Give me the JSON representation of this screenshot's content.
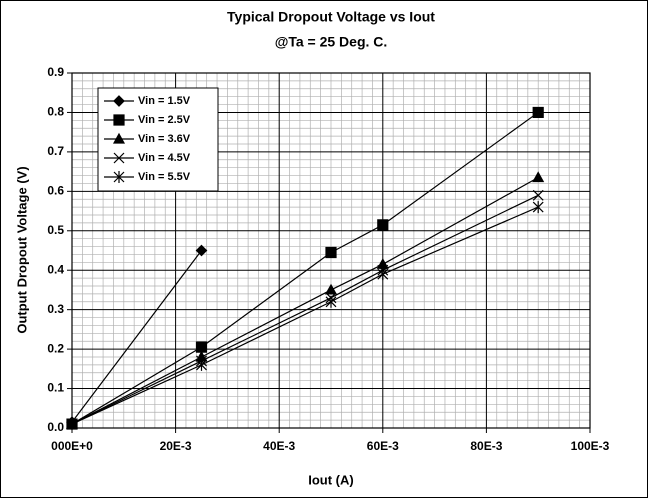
{
  "chart_data": {
    "type": "line",
    "title": "Typical Dropout Voltage vs Iout",
    "subtitle": "@Ta = 25 Deg. C.",
    "xlabel": "Iout (A)",
    "ylabel": "Output Dropout Voltage (V)",
    "xlim": [
      0,
      0.1
    ],
    "xticks": [
      {
        "value": 0,
        "label": "000E+0"
      },
      {
        "value": 0.02,
        "label": "20E-3"
      },
      {
        "value": 0.04,
        "label": "40E-3"
      },
      {
        "value": 0.06,
        "label": "60E-3"
      },
      {
        "value": 0.08,
        "label": "80E-3"
      },
      {
        "value": 0.1,
        "label": "100E-3"
      }
    ],
    "ylim": [
      0,
      0.9
    ],
    "yticks": [
      {
        "value": 0,
        "label": "0.0"
      },
      0.1,
      0.2,
      0.3,
      0.4,
      0.5,
      0.6,
      0.7,
      0.8,
      0.9
    ],
    "grid": true,
    "minor_grid": {
      "x": 10,
      "y": 5
    },
    "legend": "upper left",
    "series": [
      {
        "name": "Vin = 1.5V",
        "color": "#000000",
        "marker": "diamond",
        "x": [
          0,
          0.025
        ],
        "values": [
          0.015,
          0.45
        ]
      },
      {
        "name": "Vin = 2.5V",
        "color": "#000000",
        "marker": "square",
        "x": [
          0,
          0.025,
          0.05,
          0.06,
          0.09
        ],
        "values": [
          0.01,
          0.205,
          0.445,
          0.515,
          0.8
        ]
      },
      {
        "name": "Vin = 3.6V",
        "color": "#000000",
        "marker": "triangle",
        "x": [
          0,
          0.025,
          0.05,
          0.06,
          0.09
        ],
        "values": [
          0.01,
          0.18,
          0.35,
          0.415,
          0.635
        ]
      },
      {
        "name": "Vin = 4.5V",
        "color": "#000000",
        "marker": "x",
        "x": [
          0,
          0.025,
          0.05,
          0.06,
          0.09
        ],
        "values": [
          0.01,
          0.17,
          0.33,
          0.4,
          0.59
        ]
      },
      {
        "name": "Vin = 5.5V",
        "color": "#000000",
        "marker": "star",
        "x": [
          0,
          0.025,
          0.05,
          0.06,
          0.09
        ],
        "values": [
          0.01,
          0.16,
          0.32,
          0.39,
          0.56
        ]
      }
    ]
  }
}
